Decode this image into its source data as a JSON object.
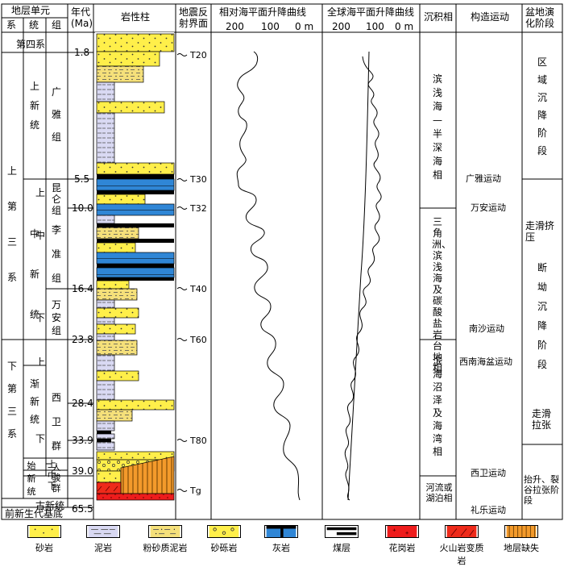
{
  "headers": {
    "unit": "地层单元",
    "system": "系",
    "series": "统",
    "group": "组",
    "age": "年代\n(Ma)",
    "lith": "岩性柱",
    "seismic": "地震反\n射界面",
    "relative_curve": "相对海平面升降曲线",
    "global_curve": "全球海平面升降曲线",
    "facies": "沉积相",
    "tectonic": "构造运动",
    "basin": "盆地演\n化阶段"
  },
  "scale_ticks": [
    "200",
    "100",
    "0 m"
  ],
  "systems": [
    "第四系",
    "上第三系",
    "下第三系"
  ],
  "series_labels": [
    "上新统",
    "中新统",
    "渐新统",
    "始新统",
    "古新统"
  ],
  "series_sub": [
    "上",
    "中",
    "下",
    "上",
    "下",
    "上",
    "中",
    "下"
  ],
  "groups": [
    "广雅组",
    "昆仑组",
    "李准组",
    "万安组",
    "西卫群",
    "人骏群"
  ],
  "basement": "前新生代基底",
  "ages": [
    "1.8",
    "5.5",
    "10.0",
    "16.4",
    "23.8",
    "28.4",
    "33.9",
    "39.0",
    "65.5"
  ],
  "seismic_labels": [
    "T20",
    "T30",
    "T32",
    "T40",
    "T60",
    "T80",
    "Tg"
  ],
  "facies": [
    "滨浅海—半深海相",
    "三角洲、滨浅海及碳酸盐岩台地相",
    "滨海沼泽及海湾相",
    "河流或湖泊相"
  ],
  "tectonics": [
    "广雅运动",
    "万安运动",
    "南沙运动",
    "西南海盆运动",
    "西卫运动",
    "礼乐运动"
  ],
  "basin_stages": [
    "区域沉降阶段",
    "走滑挤压",
    "断坳沉降阶段",
    "走滑拉张",
    "抬升、裂谷拉张阶段"
  ],
  "legend": [
    "砂岩",
    "泥岩",
    "粉砂质泥岩",
    "砂砾岩",
    "灰岩",
    "煤层",
    "花岗岩",
    "火山岩变质岩",
    "地层缺失"
  ]
}
